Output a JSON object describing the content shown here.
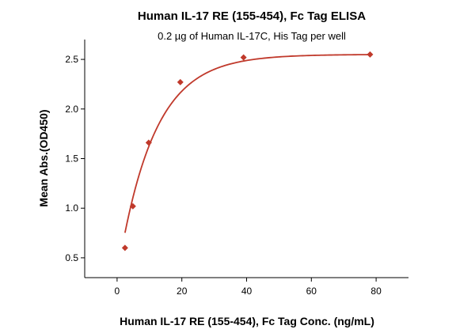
{
  "chart_data": {
    "type": "scatter",
    "title": "Human IL-17 RE (155-454), Fc Tag ELISA",
    "subtitle": "0.2 µg of Human IL-17C, His Tag per well",
    "xlabel": "Human IL-17 RE (155-454), Fc Tag Conc. (ng/mL)",
    "ylabel": "Mean Abs.(OD450)",
    "xlim": [
      -10,
      90
    ],
    "ylim": [
      0.3,
      2.7
    ],
    "xticks": [
      0,
      20,
      40,
      60,
      80
    ],
    "yticks": [
      0.5,
      1.0,
      1.5,
      2.0,
      2.5
    ],
    "xtick_labels": [
      "0",
      "20",
      "40",
      "60",
      "80"
    ],
    "ytick_labels": [
      "0.5",
      "1.0",
      "1.5",
      "2.0",
      "2.5"
    ],
    "grid": false,
    "legend": "none",
    "marker": "diamond",
    "color": "#c0392b",
    "points": [
      {
        "x": 2.44,
        "y": 0.6
      },
      {
        "x": 4.88,
        "y": 1.02
      },
      {
        "x": 9.77,
        "y": 1.66
      },
      {
        "x": 19.53,
        "y": 2.27
      },
      {
        "x": 39.06,
        "y": 2.52
      },
      {
        "x": 78.13,
        "y": 2.55
      }
    ],
    "fit": {
      "type": "exponential-saturation",
      "baseline": 0.31,
      "plateau": 2.55,
      "rate": 0.09
    }
  }
}
